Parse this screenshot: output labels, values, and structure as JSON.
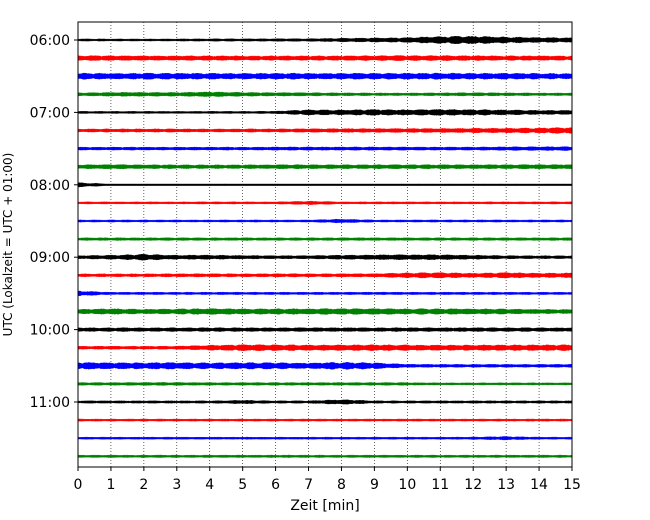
{
  "chart_data": {
    "type": "line",
    "title": "",
    "xlabel": "Zeit  [min]",
    "ylabel": "UTC (Lokalzeit = UTC + 01:00)",
    "xlim": [
      0,
      15
    ],
    "x_ticks": [
      "0",
      "1",
      "2",
      "3",
      "4",
      "5",
      "6",
      "7",
      "8",
      "9",
      "10",
      "11",
      "12",
      "13",
      "14",
      "15"
    ],
    "y_ticks": [
      "06:00",
      "07:00",
      "08:00",
      "09:00",
      "10:00",
      "11:00"
    ],
    "grid": "vertical dotted",
    "trace_colors": [
      "#000000",
      "#ff0000",
      "#0000ff",
      "#008000"
    ],
    "trace_start_times": [
      "06:00",
      "06:15",
      "06:30",
      "06:45",
      "07:00",
      "07:15",
      "07:30",
      "07:45",
      "08:00",
      "08:15",
      "08:30",
      "08:45",
      "09:00",
      "09:15",
      "09:30",
      "09:45",
      "10:00",
      "10:15",
      "10:30",
      "10:45",
      "11:00",
      "11:15",
      "11:30",
      "11:45"
    ],
    "trace_intensity": [
      [
        0.8,
        0.8,
        0.8,
        0.8,
        0.9,
        0.9,
        1.0,
        1.0,
        1.3,
        1.5,
        1.8,
        2.6,
        2.8,
        2.3,
        1.9,
        1.6
      ],
      [
        1.8,
        1.8,
        1.7,
        1.7,
        1.7,
        1.6,
        1.6,
        1.6,
        1.7,
        1.8,
        1.9,
        1.9,
        1.8,
        1.7,
        1.7,
        1.6
      ],
      [
        2.2,
        2.2,
        2.2,
        2.2,
        2.2,
        2.1,
        2.2,
        2.2,
        2.2,
        2.2,
        2.2,
        2.3,
        2.2,
        2.2,
        2.1,
        2.0
      ],
      [
        1.2,
        1.4,
        1.5,
        1.4,
        1.8,
        1.4,
        1.3,
        1.2,
        1.1,
        1.0,
        1.0,
        1.1,
        1.2,
        1.1,
        1.0,
        1.0
      ],
      [
        0.8,
        0.8,
        0.8,
        0.8,
        0.8,
        0.8,
        0.9,
        2.0,
        1.8,
        2.2,
        1.9,
        2.3,
        2.1,
        1.8,
        1.6,
        1.5
      ],
      [
        1.1,
        1.2,
        1.2,
        1.2,
        1.1,
        1.2,
        1.2,
        1.3,
        1.4,
        1.4,
        1.5,
        1.5,
        1.6,
        1.7,
        1.9,
        2.2
      ],
      [
        1.1,
        1.1,
        1.1,
        1.1,
        1.1,
        1.1,
        1.2,
        1.2,
        1.2,
        1.2,
        1.2,
        1.2,
        1.2,
        1.3,
        1.4,
        1.5
      ],
      [
        1.5,
        1.6,
        1.5,
        1.4,
        1.4,
        1.4,
        1.5,
        1.5,
        1.5,
        1.5,
        1.5,
        1.5,
        1.5,
        1.5,
        1.6,
        1.6
      ],
      [
        1.6,
        0.6,
        0.6,
        0.6,
        0.6,
        0.6,
        0.6,
        0.6,
        0.6,
        0.6,
        0.6,
        0.6,
        0.6,
        0.6,
        0.6,
        0.6
      ],
      [
        0.8,
        0.8,
        0.8,
        0.8,
        0.8,
        0.8,
        0.8,
        1.3,
        0.8,
        0.8,
        0.8,
        0.8,
        0.8,
        0.8,
        0.8,
        0.8
      ],
      [
        0.8,
        0.8,
        0.8,
        0.8,
        0.8,
        0.8,
        0.8,
        0.8,
        1.4,
        0.8,
        0.8,
        0.8,
        0.8,
        0.8,
        0.8,
        0.8
      ],
      [
        1.0,
        1.0,
        1.0,
        1.0,
        1.0,
        1.0,
        1.0,
        1.0,
        1.0,
        1.0,
        1.0,
        1.0,
        1.0,
        1.0,
        1.0,
        1.0
      ],
      [
        1.2,
        1.5,
        2.2,
        1.5,
        1.6,
        1.3,
        1.2,
        1.2,
        1.5,
        1.8,
        1.9,
        1.8,
        1.5,
        1.2,
        1.1,
        1.1
      ],
      [
        1.1,
        1.1,
        1.1,
        1.2,
        1.2,
        1.1,
        1.2,
        1.2,
        1.2,
        1.2,
        1.8,
        2.0,
        1.5,
        2.0,
        1.6,
        1.7
      ],
      [
        1.8,
        0.9,
        0.9,
        0.9,
        0.9,
        0.9,
        0.9,
        0.9,
        0.9,
        0.9,
        0.9,
        0.9,
        0.9,
        0.9,
        0.9,
        0.9
      ],
      [
        1.6,
        2.1,
        1.7,
        1.9,
        2.2,
        2.0,
        2.0,
        2.1,
        2.2,
        2.3,
        2.0,
        2.1,
        2.0,
        1.9,
        1.6,
        1.5
      ],
      [
        1.4,
        1.4,
        1.4,
        1.4,
        1.4,
        1.4,
        1.4,
        1.4,
        1.4,
        1.4,
        1.4,
        1.4,
        1.4,
        1.4,
        1.4,
        1.4
      ],
      [
        1.1,
        1.2,
        1.1,
        1.2,
        1.8,
        2.3,
        2.2,
        2.0,
        2.1,
        2.2,
        2.0,
        1.9,
        2.0,
        2.1,
        2.1,
        2.2
      ],
      [
        2.5,
        2.3,
        2.3,
        2.4,
        2.2,
        2.3,
        2.3,
        2.1,
        2.6,
        2.3,
        1.2,
        1.1,
        1.1,
        1.1,
        1.1,
        1.1
      ],
      [
        1.0,
        1.0,
        1.1,
        1.1,
        1.0,
        1.0,
        1.0,
        1.0,
        1.0,
        1.0,
        1.0,
        0.8,
        0.8,
        0.8,
        0.8,
        0.8
      ],
      [
        1.0,
        0.9,
        0.9,
        0.9,
        0.9,
        1.3,
        0.9,
        0.9,
        1.8,
        0.9,
        0.9,
        0.9,
        0.9,
        0.9,
        0.9,
        0.9
      ],
      [
        0.8,
        0.8,
        0.8,
        0.8,
        0.8,
        0.8,
        0.8,
        0.8,
        0.8,
        0.8,
        0.8,
        0.8,
        0.8,
        0.8,
        0.8,
        0.8
      ],
      [
        0.8,
        0.8,
        0.8,
        0.8,
        0.8,
        0.8,
        0.8,
        0.8,
        0.8,
        0.8,
        0.8,
        0.8,
        0.9,
        1.3,
        0.8,
        0.8
      ],
      [
        0.9,
        0.9,
        0.9,
        0.9,
        0.9,
        0.9,
        0.9,
        0.9,
        0.9,
        0.9,
        0.9,
        0.9,
        0.9,
        0.9,
        0.9,
        0.9
      ]
    ]
  }
}
